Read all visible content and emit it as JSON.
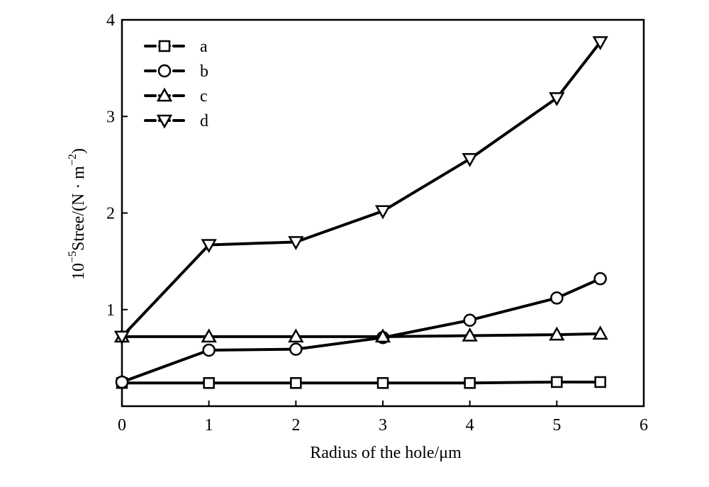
{
  "chart_data": {
    "type": "line",
    "title": "",
    "xlabel": "Radius of the hole/μm",
    "ylabel_parts": {
      "coef": "10",
      "exp": "−5",
      "mid": "Stree/(N · m",
      "unit_exp": "−2",
      "end": ")"
    },
    "xlim": [
      0,
      6
    ],
    "ylim": [
      0,
      4
    ],
    "x_ticks": [
      "0",
      "1",
      "2",
      "3",
      "4",
      "5",
      "6"
    ],
    "y_ticks": [
      "1",
      "2",
      "3",
      "4"
    ],
    "grid": false,
    "legend_position": "top-left",
    "x": [
      0,
      1,
      2,
      3,
      4,
      5,
      5.5
    ],
    "series": [
      {
        "name": "a",
        "marker": "square",
        "values": [
          0.24,
          0.24,
          0.24,
          0.24,
          0.24,
          0.25,
          0.25
        ]
      },
      {
        "name": "b",
        "marker": "circle",
        "values": [
          0.25,
          0.58,
          0.59,
          0.71,
          0.89,
          1.12,
          1.32
        ]
      },
      {
        "name": "c",
        "marker": "triangle-up",
        "values": [
          0.72,
          0.72,
          0.72,
          0.72,
          0.73,
          0.74,
          0.75
        ]
      },
      {
        "name": "d",
        "marker": "triangle-down",
        "values": [
          0.72,
          1.67,
          1.7,
          2.02,
          2.56,
          3.19,
          3.77
        ]
      }
    ]
  }
}
